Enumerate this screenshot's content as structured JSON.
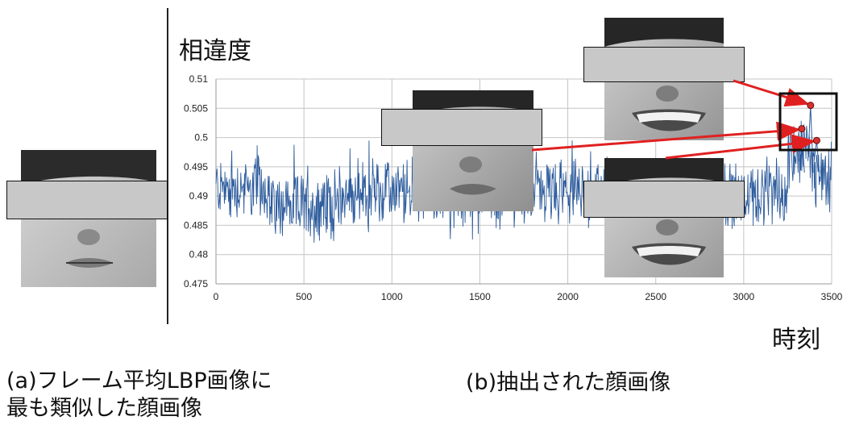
{
  "chart_data": {
    "type": "line",
    "ylabel": "相違度",
    "xlabel": "時刻",
    "xlim": [
      0,
      3500
    ],
    "ylim": [
      0.475,
      0.51
    ],
    "x_ticks": [
      0,
      500,
      1000,
      1500,
      2000,
      2500,
      3000,
      3500
    ],
    "x_tick_labels": [
      "0",
      "500",
      "1000",
      "1500",
      "2000",
      "2500",
      "3000",
      "3500"
    ],
    "y_ticks": [
      0.475,
      0.48,
      0.485,
      0.49,
      0.495,
      0.5,
      0.505,
      0.51
    ],
    "y_tick_labels": [
      "0.475",
      "0.48",
      "0.485",
      "0.49",
      "0.495",
      "0.5",
      "0.505",
      "0.51"
    ],
    "grid": true,
    "series": [
      {
        "color": "#2c5b9c",
        "points": 3500,
        "baseline": 0.4905,
        "noise_band": [
          0.483,
          0.4965
        ],
        "segment_means": [
          {
            "x": [
              0,
              300
            ],
            "y": 0.4915
          },
          {
            "x": [
              300,
              700
            ],
            "y": 0.4885
          },
          {
            "x": [
              700,
              1700
            ],
            "y": 0.4905
          },
          {
            "x": [
              1700,
              2400
            ],
            "y": 0.4905
          },
          {
            "x": [
              2400,
              3250
            ],
            "y": 0.4905
          },
          {
            "x": [
              3250,
              3400
            ],
            "y": 0.4975
          },
          {
            "x": [
              3400,
              3500
            ],
            "y": 0.4935
          }
        ]
      }
    ],
    "highlight_points": [
      {
        "x": 3380,
        "y": 0.5055
      },
      {
        "x": 3330,
        "y": 0.5015
      },
      {
        "x": 3415,
        "y": 0.4995
      }
    ],
    "highlight_color": "#d63030",
    "arrow_color": "#e02020"
  },
  "captions": {
    "left_line1": "(a)フレーム平均LBP画像に",
    "left_line2": "最も類似した顔画像",
    "right": "(b)抽出された顔画像"
  }
}
